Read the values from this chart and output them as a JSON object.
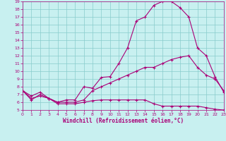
{
  "xlabel": "Windchill (Refroidissement éolien,°C)",
  "bg_color": "#c8f0f0",
  "line_color": "#aa0077",
  "grid_color": "#88cccc",
  "xmin": 0,
  "xmax": 23,
  "ymin": 5,
  "ymax": 19,
  "curve1_x": [
    0,
    1,
    2,
    3,
    4,
    5,
    6,
    7,
    8,
    9,
    10,
    11,
    12,
    13,
    14,
    15,
    16,
    17,
    18,
    19,
    20,
    21,
    22,
    23
  ],
  "curve1_y": [
    7.5,
    6.3,
    7.0,
    6.5,
    6.0,
    6.3,
    6.3,
    8.0,
    7.8,
    9.2,
    9.3,
    11.0,
    13.0,
    16.5,
    17.0,
    18.5,
    19.0,
    19.0,
    18.2,
    17.0,
    13.0,
    12.0,
    9.3,
    7.3
  ],
  "curve2_x": [
    0,
    1,
    2,
    3,
    4,
    5,
    6,
    7,
    8,
    9,
    10,
    11,
    12,
    13,
    14,
    15,
    16,
    17,
    18,
    19,
    20,
    21,
    22,
    23
  ],
  "curve2_y": [
    7.5,
    6.8,
    7.3,
    6.5,
    6.0,
    6.0,
    6.0,
    6.3,
    7.5,
    8.0,
    8.5,
    9.0,
    9.5,
    10.0,
    10.5,
    10.5,
    11.0,
    11.5,
    11.8,
    12.0,
    10.5,
    9.5,
    9.0,
    7.5
  ],
  "curve3_x": [
    0,
    1,
    2,
    3,
    4,
    5,
    6,
    7,
    8,
    9,
    10,
    11,
    12,
    13,
    14,
    15,
    16,
    17,
    18,
    19,
    20,
    21,
    22,
    23
  ],
  "curve3_y": [
    7.5,
    6.5,
    6.8,
    6.5,
    5.8,
    5.8,
    5.8,
    6.0,
    6.2,
    6.3,
    6.3,
    6.3,
    6.3,
    6.3,
    6.3,
    5.8,
    5.5,
    5.5,
    5.5,
    5.5,
    5.5,
    5.3,
    5.1,
    5.0
  ]
}
